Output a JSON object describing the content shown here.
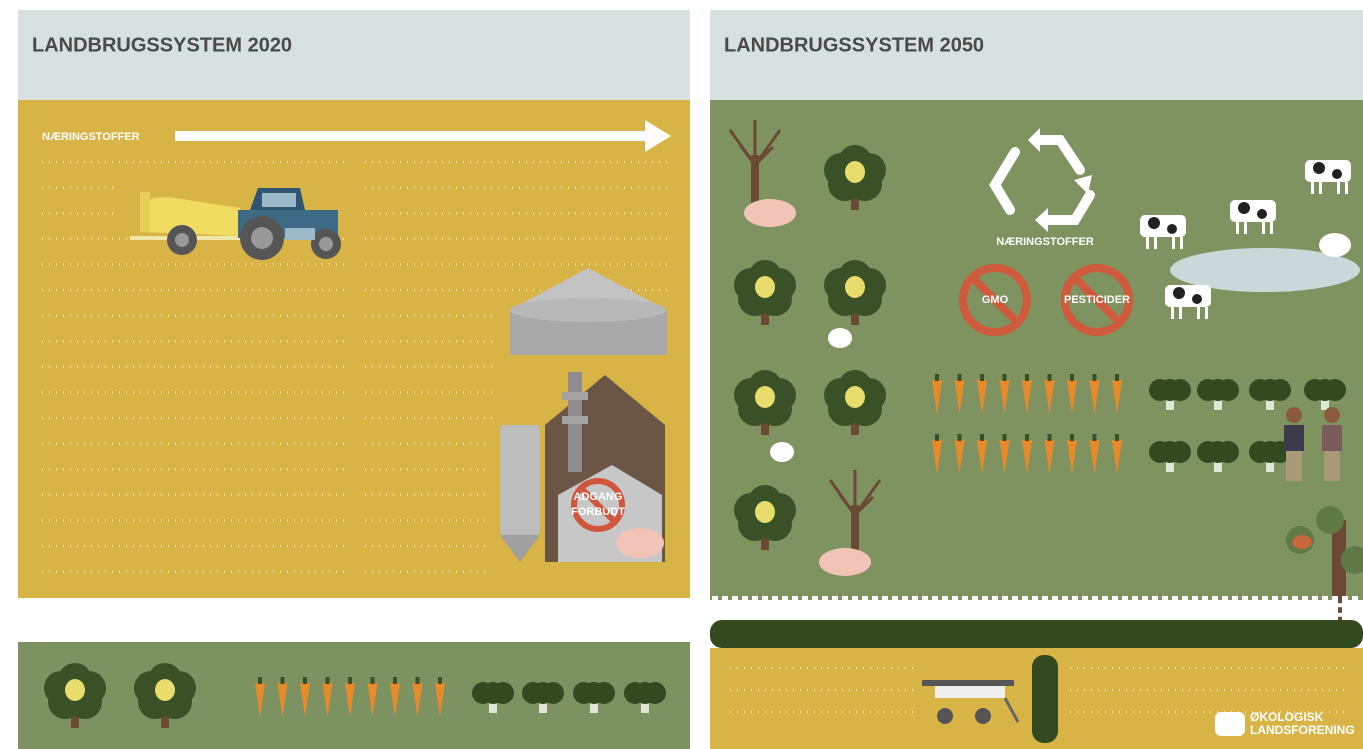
{
  "left_panel": {
    "title": "LANDBRUGSSYSTEM 2020",
    "arrow_label": "NÆRINGSTOFFER",
    "sign_lines": [
      "ADGANG",
      "FORBUDT"
    ]
  },
  "right_panel": {
    "title": "LANDBRUGSSYSTEM 2050",
    "cycle_label": "NÆRINGSTOFFER",
    "bans": [
      "GMO",
      "PESTICIDER"
    ],
    "logo_lines": [
      "ØKOLOGISK",
      "LANDSFORENING"
    ]
  }
}
